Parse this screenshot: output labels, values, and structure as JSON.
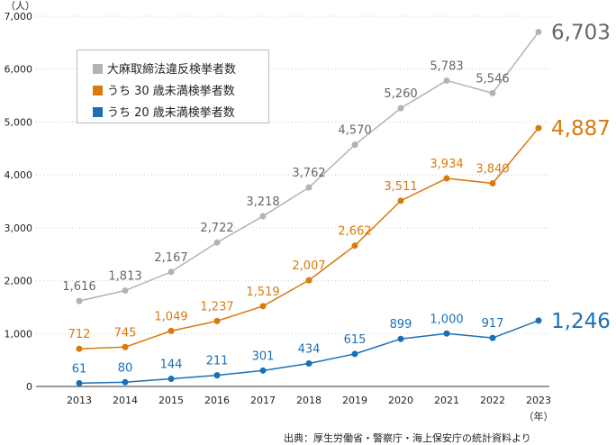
{
  "chart_data": {
    "type": "line",
    "y_unit_label": "（人）",
    "x_unit_label": "（年）",
    "x": [
      "2013",
      "2014",
      "2015",
      "2016",
      "2017",
      "2018",
      "2019",
      "2020",
      "2021",
      "2022",
      "2023"
    ],
    "yticks": [
      "0",
      "1,000",
      "2,000",
      "3,000",
      "4,000",
      "5,000",
      "6,000",
      "7,000"
    ],
    "ylim": [
      0,
      7000
    ],
    "grid": "horizontal dotted",
    "legend_position": "top-left",
    "series": [
      {
        "name": "大麻取締法違反検挙者数",
        "color": "#b3b3b3",
        "label_color": "#666666",
        "values": [
          1616,
          1813,
          2167,
          2722,
          3218,
          3762,
          4570,
          5260,
          5783,
          5546,
          6703
        ],
        "labels": [
          "1,616",
          "1,813",
          "2,167",
          "2,722",
          "3,218",
          "3,762",
          "4,570",
          "5,260",
          "5,783",
          "5,546",
          "6,703"
        ]
      },
      {
        "name": "うち 30 歳未満検挙者数",
        "color": "#d97a0c",
        "label_color": "#d97a0c",
        "values": [
          712,
          745,
          1049,
          1237,
          1519,
          2007,
          2662,
          3511,
          3934,
          3840,
          4887
        ],
        "labels": [
          "712",
          "745",
          "1,049",
          "1,237",
          "1,519",
          "2,007",
          "2,662",
          "3,511",
          "3,934",
          "3,840",
          "4,887"
        ]
      },
      {
        "name": "うち 20 歳未満検挙者数",
        "color": "#1b70b5",
        "label_color": "#1b70b5",
        "values": [
          61,
          80,
          144,
          211,
          301,
          434,
          615,
          899,
          1000,
          917,
          1246
        ],
        "labels": [
          "61",
          "80",
          "144",
          "211",
          "301",
          "434",
          "615",
          "899",
          "1,000",
          "917",
          "1,246"
        ]
      }
    ]
  },
  "source": "出典：厚生労働省・警察庁・海上保安庁の統計資料より"
}
